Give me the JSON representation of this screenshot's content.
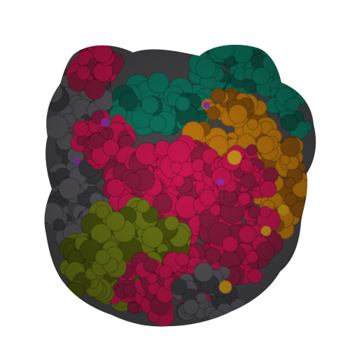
{
  "image": {
    "subject": "protein-complex-surface-render",
    "background": "#ffffff"
  },
  "palette": {
    "crimson": "#c8184f",
    "crimson_dark": "#8e1d3f",
    "teal": "#0c7a62",
    "teal_dark": "#095646",
    "orange": "#c27a0e",
    "orange_dark": "#8c5209",
    "olive": "#6f7a14",
    "olive_dark": "#4d5610",
    "gray": "#5b5a5e",
    "gray_dark": "#3d3c40",
    "purple": "#9a2fb0",
    "gold": "#d29c12"
  },
  "regions": [
    {
      "name": "crimson-chain-top-left",
      "color": "crimson"
    },
    {
      "name": "teal-chain-top",
      "color": "teal"
    },
    {
      "name": "orange-chain-right",
      "color": "orange"
    },
    {
      "name": "crimson-chain-center",
      "color": "crimson"
    },
    {
      "name": "olive-chain-bottom-left",
      "color": "olive"
    },
    {
      "name": "gray-chain-left",
      "color": "gray"
    }
  ]
}
